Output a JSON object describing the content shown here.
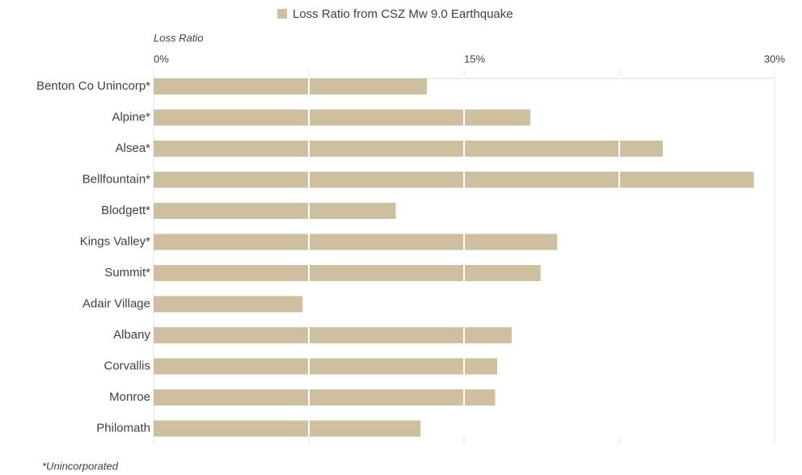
{
  "chart_data": {
    "type": "hbar",
    "legend": "Loss Ratio from CSZ Mw 9.0 Earthquake",
    "x_label": "Loss Ratio",
    "footnote": "*Unincorporated",
    "categories": [
      "Benton Co Unincorp*",
      "Alpine*",
      "Alsea*",
      "Bellfountain*",
      "Blodgett*",
      "Kings Valley*",
      "Summit*",
      "Adair Village",
      "Albany",
      "Corvallis",
      "Monroe",
      "Philomath"
    ],
    "values": [
      13.2,
      18.2,
      24.6,
      29.0,
      11.7,
      19.5,
      18.7,
      7.2,
      17.3,
      16.6,
      16.5,
      12.9
    ],
    "color": "#cdbf9f",
    "xlim": [
      0,
      30
    ],
    "xticks": [
      {
        "value": 0,
        "label": "0%"
      },
      {
        "value": 15,
        "label": "15%"
      },
      {
        "value": 30,
        "label": "30%"
      }
    ],
    "xticks_minor": [
      7.5,
      22.5
    ],
    "grid": true
  }
}
